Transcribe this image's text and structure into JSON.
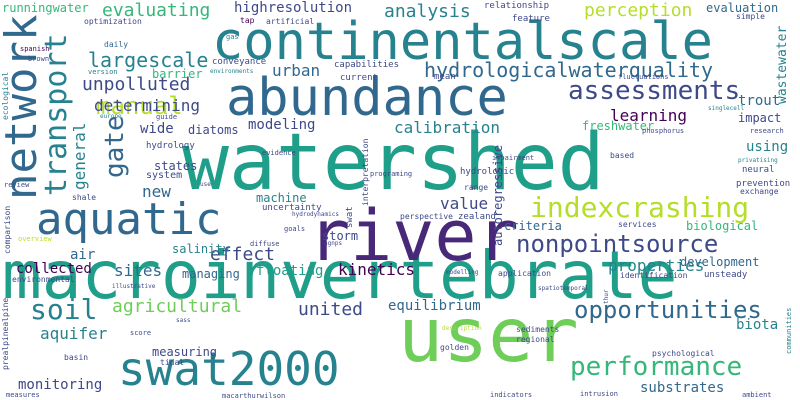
{
  "palette": {
    "background": "#ffffff",
    "purple_dark": "#440154",
    "purple": "#482878",
    "indigo": "#3e4989",
    "blue": "#31688e",
    "teal_blue": "#26828e",
    "teal": "#1f9e89",
    "green": "#35b779",
    "lime": "#6ece58",
    "yellow_green": "#b5de2b",
    "yellow": "#fde725"
  },
  "words": {
    "watershed": "watershed",
    "macroinvertebrate": "macroinvertebrate",
    "river": "river",
    "user": "user",
    "continentalscale": "continentalscale",
    "abundance": "abundance",
    "aquatic": "aquatic",
    "network": "network",
    "swat2000": "swat2000",
    "indexcrashing": "indexcrashing",
    "nonpointsource": "nonpointsource",
    "assessments": "assessments",
    "transport": "transport",
    "performance": "performance",
    "opportunities": "opportunities",
    "hydrologicalwaterquality": "hydrologicalwaterquality",
    "manual": "manual",
    "gate": "gate",
    "soil": "soil",
    "largescale": "largescale",
    "unpolluted": "unpolluted",
    "determining": "determining",
    "urban": "urban",
    "analysis": "analysis",
    "perception": "perception",
    "evaluating": "evaluating",
    "highresolution": "highresolution",
    "runningwater": "runningwater",
    "learning": "learning",
    "calibration": "calibration",
    "modeling": "modeling",
    "value": "value",
    "effect": "effect",
    "kinetics": "kinetics",
    "properties": "properties",
    "agricultural": "agricultural",
    "united": "united",
    "aquifer": "aquifer",
    "equilibrium": "equilibrium",
    "sites": "sites",
    "collected": "collected",
    "new": "new",
    "general": "general",
    "salinity": "salinity",
    "air": "air",
    "managing": "managing",
    "floating": "floating",
    "storm": "storm",
    "machine": "machine",
    "autoregressive": "autoregressive",
    "criteria": "criteria",
    "biological": "biological",
    "development": "development",
    "using": "using",
    "impact": "impact",
    "freshwater": "freshwater",
    "trout": "trout",
    "wastewater": "wastewater",
    "biota": "biota",
    "substrates": "substrates",
    "monitoring": "monitoring",
    "measuring": "measuring",
    "wide": "wide",
    "diatoms": "diatoms",
    "states": "states",
    "system": "system",
    "hydrology": "hydrology",
    "barrier": "barrier",
    "evaluation": "evaluation",
    "optimization": "optimization",
    "relationship": "relationship",
    "feature": "feature",
    "artificial": "artificial",
    "tap": "tap",
    "daily": "daily",
    "spanish": "spanish",
    "brown": "brown",
    "version": "version",
    "gas": "gas",
    "conveyance": "conveyance",
    "capabilities": "capabilities",
    "environments": "environments",
    "current": "current",
    "mean": "mean",
    "fluctuations": "fluctuations",
    "simple": "simple",
    "singlecell": "singlecell",
    "research": "research",
    "phosphorus": "phosphorus",
    "ecological": "ecological",
    "europe": "europe",
    "guide": "guide",
    "evidence": "evidence",
    "interpretation": "interpretation",
    "programing": "programing",
    "hydrologic": "hydrologic",
    "impairment": "impairment",
    "based": "based",
    "neural": "neural",
    "privatising": "privatising",
    "prevention": "prevention",
    "exchange": "exchange",
    "range": "range",
    "use": "use",
    "review": "review",
    "shale": "shale",
    "uncertainty": "uncertainty",
    "hydrodynamics": "hydrodynamics",
    "zealand": "zealand",
    "perspective": "perspective",
    "swat": "swat",
    "comparison": "comparison",
    "overview": "overview",
    "diffuse": "diffuse",
    "goals": "goals",
    "agnps": "agnps",
    "services": "services",
    "identification": "identification",
    "unsteady": "unsteady",
    "environmental": "environmental",
    "illustrative": "illustrative",
    "prealpinealpine": "prealpinealpine",
    "modelling": "modelling",
    "application": "application",
    "spatiotemporal": "spatiotemporal",
    "score": "score",
    "sass": "sass",
    "description": "description",
    "thur": "thur",
    "basin": "basin",
    "tidal": "tidal",
    "sediments": "sediments",
    "regional": "regional",
    "golden": "golden",
    "communities": "communities",
    "psychological": "psychological",
    "measures": "measures",
    "macarthurwilson": "macarthurwilson",
    "indicators": "indicators",
    "intrusion": "intrusion",
    "ambient": "ambient"
  }
}
